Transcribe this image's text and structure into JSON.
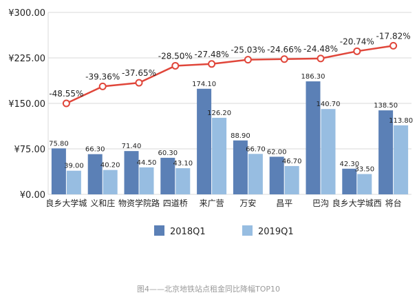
{
  "caption": "图4——北京地铁站点租金同比降幅TOP10",
  "colors": {
    "bar_2018": "#5b80b6",
    "bar_2019": "#97bde1",
    "line": "#e0463a",
    "marker_fill": "#ffffff",
    "grid": "#d9d9d9",
    "axis_text": "#222222",
    "caption_text": "#9a9a9a"
  },
  "chart_data": {
    "type": "bar",
    "title": "",
    "xlabel": "",
    "ylabel": "",
    "ylim": [
      0,
      300
    ],
    "yticks": [
      0,
      75,
      150,
      225,
      300
    ],
    "ytick_labels": [
      "¥0.00",
      "¥75.00",
      "¥150.00",
      "¥225.00",
      "¥300.00"
    ],
    "grid": true,
    "legend_position": "bottom",
    "categories": [
      "良乡大学城",
      "义和庄",
      "物资学院路",
      "四道桥",
      "来广营",
      "万安",
      "昌平",
      "巴沟",
      "良乡大学城西",
      "将台"
    ],
    "series": [
      {
        "name": "2018Q1",
        "type": "bar",
        "values": [
          75.8,
          66.3,
          71.4,
          60.3,
          174.1,
          88.9,
          62.0,
          186.3,
          42.3,
          138.5
        ],
        "labels": [
          "75.80",
          "66.30",
          "71.40",
          "60.30",
          "174.10",
          "88.90",
          "62.00",
          "186.30",
          "42.30",
          "138.50"
        ]
      },
      {
        "name": "2019Q1",
        "type": "bar",
        "values": [
          39.0,
          40.2,
          44.5,
          43.1,
          126.2,
          66.7,
          46.7,
          140.7,
          33.5,
          113.8
        ],
        "labels": [
          "39.00",
          "40.20",
          "44.50",
          "43.10",
          "126.20",
          "66.70",
          "46.70",
          "140.70",
          "33.50",
          "113.80"
        ]
      },
      {
        "name": "",
        "type": "line",
        "percent_values": [
          -48.55,
          -39.36,
          -37.65,
          -28.5,
          -27.48,
          -25.03,
          -24.66,
          -24.48,
          -20.74,
          -17.82
        ],
        "labels": [
          "-48.55%",
          "-39.36%",
          "-37.65%",
          "-28.50%",
          "-27.48%",
          "-25.03%",
          "-24.66%",
          "-24.48%",
          "-20.74%",
          "-17.82%"
        ],
        "plotted_y": [
          150,
          178,
          184,
          212,
          215,
          222,
          223,
          224,
          236,
          245
        ]
      }
    ]
  }
}
